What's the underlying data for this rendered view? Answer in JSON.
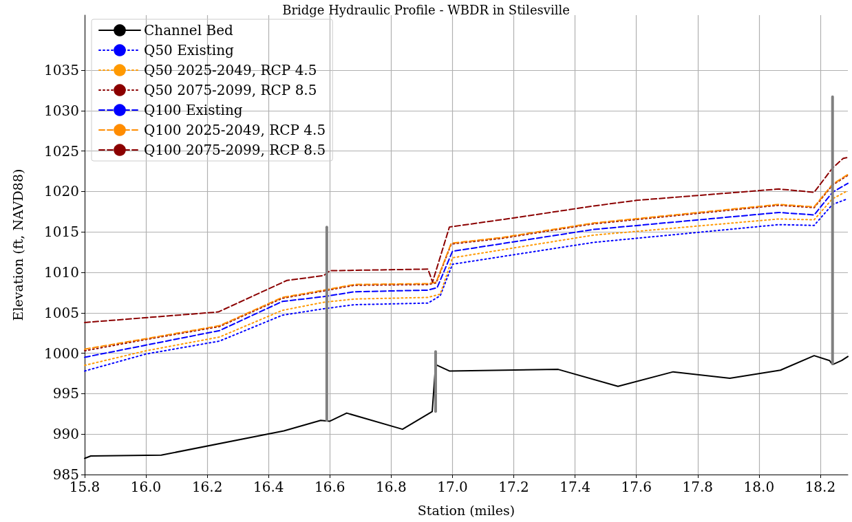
{
  "chart_data": {
    "type": "line",
    "title": "Bridge Hydraulic Profile - WBDR in Stilesville",
    "xlabel": "Station (miles)",
    "ylabel": "Elevation (ft, NAVD88)",
    "xlim": [
      15.8,
      18.29
    ],
    "ylim": [
      985,
      1041.8
    ],
    "xticks": [
      15.8,
      {
        "value": 16,
        "label": "16.0"
      },
      16.2,
      16.4,
      16.6,
      16.8,
      {
        "value": 17,
        "label": "17.0"
      },
      17.2,
      17.4,
      17.6,
      17.8,
      {
        "value": 18,
        "label": "18.0"
      },
      18.2
    ],
    "yticks": [
      985,
      990,
      995,
      1000,
      1005,
      1010,
      1015,
      1020,
      1025,
      1030,
      1035
    ],
    "grid": true,
    "legend": "top left",
    "marker": "none",
    "series": [
      {
        "name": "Channel Bed",
        "color": "#000000",
        "line_style": "solid",
        "x": [
          15.8,
          15.82,
          16.05,
          16.45,
          16.57,
          16.6,
          16.655,
          16.837,
          16.934,
          16.945,
          16.99,
          17.345,
          17.54,
          17.72,
          17.905,
          18.07,
          18.18,
          18.23,
          18.24,
          18.27,
          18.29
        ],
        "values": [
          987.0,
          987.3,
          987.4,
          990.4,
          991.7,
          991.6,
          992.6,
          990.6,
          992.8,
          998.6,
          997.8,
          998.0,
          995.9,
          997.7,
          996.9,
          997.9,
          999.7,
          999.1,
          998.6,
          999.1,
          999.6
        ]
      },
      {
        "name": "Q50 Existing",
        "color": "#0000ff",
        "line_style": "dotted",
        "x": [
          15.8,
          16.0,
          16.24,
          16.445,
          16.58,
          16.68,
          16.92,
          16.96,
          17.0,
          17.46,
          18.065,
          18.18,
          18.24,
          18.29
        ],
        "values": [
          997.8,
          999.9,
          1001.5,
          1004.7,
          1005.5,
          1006.0,
          1006.2,
          1007.1,
          1011.0,
          1013.7,
          1015.9,
          1015.8,
          1018.4,
          1019.1
        ]
      },
      {
        "name": "Q50 2025-2049, RCP 4.5",
        "color": "#ff9900",
        "line_style": "dotted",
        "x": [
          15.8,
          16.0,
          16.24,
          16.445,
          16.58,
          16.68,
          16.92,
          16.96,
          17.0,
          17.46,
          18.065,
          18.18,
          18.24,
          18.29
        ],
        "values": [
          998.5,
          1000.3,
          1002.0,
          1005.3,
          1006.3,
          1006.7,
          1006.9,
          1007.3,
          1011.8,
          1014.6,
          1016.6,
          1016.5,
          1019.1,
          1020.1
        ]
      },
      {
        "name": "Q50 2075-2099, RCP 8.5",
        "color": "#8b0000",
        "line_style": "dotted",
        "x": [
          15.8,
          16.0,
          16.24,
          16.445,
          16.58,
          16.68,
          16.92,
          16.947,
          16.996,
          17.16,
          17.46,
          18.065,
          18.18,
          18.24,
          18.29
        ],
        "values": [
          1000.3,
          1001.7,
          1003.3,
          1006.8,
          1007.7,
          1008.4,
          1008.5,
          1008.7,
          1013.5,
          1014.2,
          1016.0,
          1018.3,
          1018.0,
          1020.8,
          1022.0
        ]
      },
      {
        "name": "Q100 Existing",
        "color": "#0000ff",
        "line_style": "dashed",
        "x": [
          15.8,
          16.0,
          16.24,
          16.445,
          16.58,
          16.68,
          16.92,
          16.95,
          17.0,
          17.46,
          18.065,
          18.18,
          18.24,
          18.29
        ],
        "values": [
          999.5,
          1001.0,
          1002.8,
          1006.4,
          1007.0,
          1007.6,
          1007.8,
          1008.1,
          1012.6,
          1015.3,
          1017.4,
          1017.1,
          1019.9,
          1021.0
        ]
      },
      {
        "name": "Q100 2025-2049, RCP 4.5",
        "color": "#ff8c00",
        "line_style": "dashed",
        "x": [
          15.8,
          16.0,
          16.24,
          16.445,
          16.58,
          16.68,
          16.92,
          16.947,
          16.996,
          17.16,
          17.46,
          18.065,
          18.18,
          18.24,
          18.29
        ],
        "values": [
          1000.5,
          1001.8,
          1003.4,
          1006.9,
          1007.8,
          1008.5,
          1008.6,
          1008.8,
          1013.6,
          1014.3,
          1016.1,
          1018.4,
          1018.1,
          1020.9,
          1022.1
        ]
      },
      {
        "name": "Q100 2075-2099, RCP 8.5",
        "color": "#8b0000",
        "line_style": "dashed",
        "x": [
          15.8,
          16.236,
          16.46,
          16.58,
          16.6,
          16.92,
          16.935,
          16.99,
          17.195,
          17.46,
          17.6,
          18.065,
          18.18,
          18.24,
          18.275,
          18.29
        ],
        "values": [
          1003.8,
          1005.1,
          1009.0,
          1009.6,
          1010.2,
          1010.4,
          1008.8,
          1015.6,
          1016.7,
          1018.2,
          1018.9,
          1020.3,
          1019.9,
          1022.9,
          1024.1,
          1024.2
        ]
      },
      {
        "color": "#808080",
        "line_style": "solid",
        "x": [
          16.59,
          16.59
        ],
        "values": [
          991.7,
          1015.6
        ]
      },
      {
        "color": "#808080",
        "line_style": "solid",
        "x": [
          16.945,
          16.945
        ],
        "values": [
          992.8,
          1000.2
        ]
      },
      {
        "color": "#808080",
        "line_style": "solid",
        "x": [
          18.24,
          18.24
        ],
        "values": [
          998.7,
          1031.7
        ]
      }
    ]
  }
}
